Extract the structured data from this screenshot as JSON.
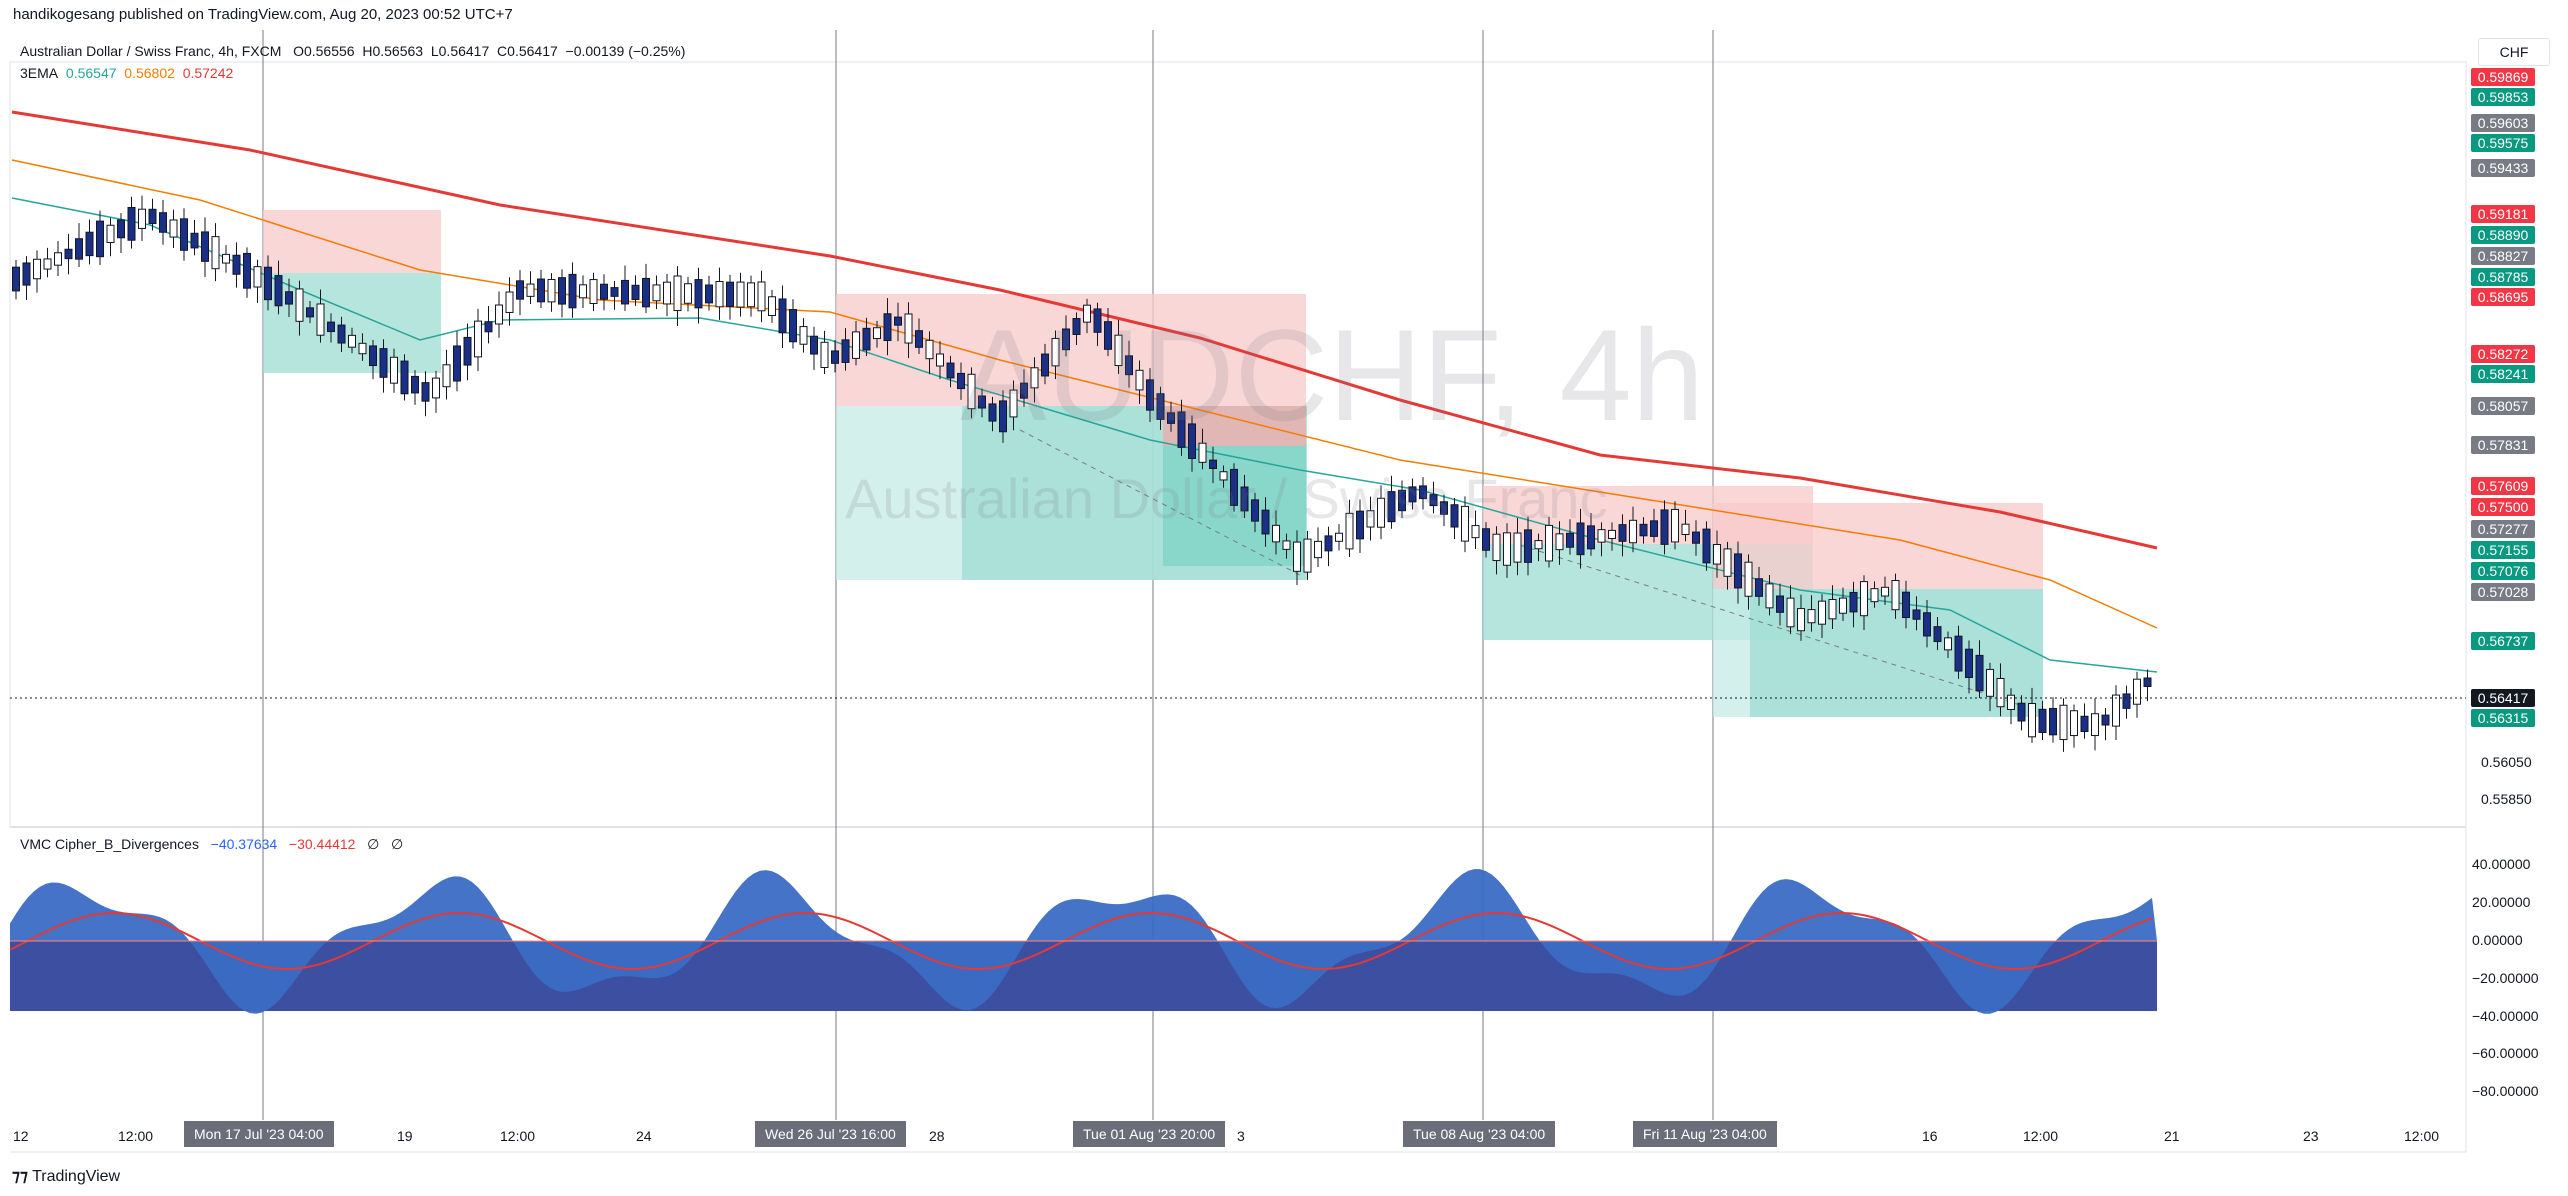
{
  "header": {
    "published_by": "handikogesang published on TradingView.com, Aug 20, 2023 00:52 UTC+7"
  },
  "symbol": {
    "title": "Australian Dollar / Swiss Franc, 4h, FXCM",
    "open": "O0.56556",
    "high": "H0.56563",
    "low": "L0.56417",
    "close": "C0.56417",
    "change": "−0.00139 (−0.25%)",
    "watermark_ticker": "AUDCHF, 4h",
    "watermark_name": "Australian Dollar / Swiss Franc"
  },
  "ema_indicator": {
    "name": "3EMA",
    "values": [
      "0.56547",
      "0.56802",
      "0.57242"
    ],
    "colors": [
      "#26a69a",
      "#f57c00",
      "#e53935"
    ]
  },
  "oscillator": {
    "name": "VMC Cipher_B_Divergences",
    "value_blue": "−40.37634",
    "value_red": "−30.44412",
    "value_3": "∅",
    "value_4": "∅"
  },
  "currency_button": "CHF",
  "price_axis": {
    "ticks": [
      "0.56050",
      "0.55850"
    ],
    "labels": [
      {
        "text": "0.59869",
        "color": "#f23645"
      },
      {
        "text": "0.59853",
        "color": "#089981"
      },
      {
        "text": "0.59603",
        "color": "#787b86"
      },
      {
        "text": "0.59575",
        "color": "#089981"
      },
      {
        "text": "0.59433",
        "color": "#787b86"
      },
      {
        "text": "0.59181",
        "color": "#f23645"
      },
      {
        "text": "0.58890",
        "color": "#089981"
      },
      {
        "text": "0.58827",
        "color": "#787b86"
      },
      {
        "text": "0.58785",
        "color": "#089981"
      },
      {
        "text": "0.58695",
        "color": "#f23645"
      },
      {
        "text": "0.58272",
        "color": "#f23645"
      },
      {
        "text": "0.58241",
        "color": "#089981"
      },
      {
        "text": "0.58057",
        "color": "#787b86"
      },
      {
        "text": "0.57831",
        "color": "#787b86"
      },
      {
        "text": "0.57609",
        "color": "#f23645"
      },
      {
        "text": "0.57500",
        "color": "#f23645"
      },
      {
        "text": "0.57277",
        "color": "#787b86"
      },
      {
        "text": "0.57155",
        "color": "#089981"
      },
      {
        "text": "0.57076",
        "color": "#089981"
      },
      {
        "text": "0.57028",
        "color": "#787b86"
      },
      {
        "text": "0.56737",
        "color": "#089981"
      },
      {
        "text": "0.56417",
        "color": "#131722"
      },
      {
        "text": "0.56315",
        "color": "#089981"
      }
    ]
  },
  "osc_axis": {
    "ticks": [
      "40.00000",
      "20.00000",
      "0.00000",
      "−20.00000",
      "−40.00000",
      "−60.00000",
      "−80.00000"
    ]
  },
  "time_axis": {
    "ticks": [
      "12",
      "12:00",
      "19",
      "12:00",
      "24",
      "28",
      "3",
      "16",
      "12:00",
      "21",
      "23",
      "12:00"
    ],
    "flags": [
      "Mon 17 Jul '23   04:00",
      "Wed 26 Jul '23   16:00",
      "Tue 01 Aug '23   20:00",
      "Tue 08 Aug '23   04:00",
      "Fri 11 Aug '23   04:00"
    ]
  },
  "footer": {
    "brand": "TradingView"
  }
}
